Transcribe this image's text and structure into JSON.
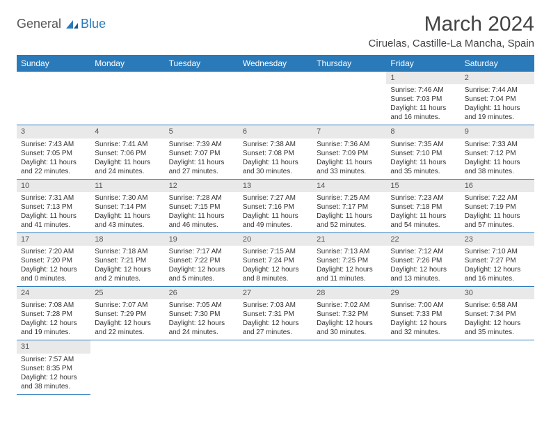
{
  "header": {
    "logo_general": "General",
    "logo_blue": "Blue",
    "month_title": "March 2024",
    "location": "Ciruelas, Castille-La Mancha, Spain"
  },
  "colors": {
    "header_bg": "#2a7aba",
    "header_text": "#ffffff",
    "daynum_bg": "#e9e9e9",
    "border": "#2a7aba",
    "text": "#333333"
  },
  "weekdays": [
    "Sunday",
    "Monday",
    "Tuesday",
    "Wednesday",
    "Thursday",
    "Friday",
    "Saturday"
  ],
  "days": [
    {
      "n": 1,
      "sunrise": "7:46 AM",
      "sunset": "7:03 PM",
      "dl": "11 hours and 16 minutes."
    },
    {
      "n": 2,
      "sunrise": "7:44 AM",
      "sunset": "7:04 PM",
      "dl": "11 hours and 19 minutes."
    },
    {
      "n": 3,
      "sunrise": "7:43 AM",
      "sunset": "7:05 PM",
      "dl": "11 hours and 22 minutes."
    },
    {
      "n": 4,
      "sunrise": "7:41 AM",
      "sunset": "7:06 PM",
      "dl": "11 hours and 24 minutes."
    },
    {
      "n": 5,
      "sunrise": "7:39 AM",
      "sunset": "7:07 PM",
      "dl": "11 hours and 27 minutes."
    },
    {
      "n": 6,
      "sunrise": "7:38 AM",
      "sunset": "7:08 PM",
      "dl": "11 hours and 30 minutes."
    },
    {
      "n": 7,
      "sunrise": "7:36 AM",
      "sunset": "7:09 PM",
      "dl": "11 hours and 33 minutes."
    },
    {
      "n": 8,
      "sunrise": "7:35 AM",
      "sunset": "7:10 PM",
      "dl": "11 hours and 35 minutes."
    },
    {
      "n": 9,
      "sunrise": "7:33 AM",
      "sunset": "7:12 PM",
      "dl": "11 hours and 38 minutes."
    },
    {
      "n": 10,
      "sunrise": "7:31 AM",
      "sunset": "7:13 PM",
      "dl": "11 hours and 41 minutes."
    },
    {
      "n": 11,
      "sunrise": "7:30 AM",
      "sunset": "7:14 PM",
      "dl": "11 hours and 43 minutes."
    },
    {
      "n": 12,
      "sunrise": "7:28 AM",
      "sunset": "7:15 PM",
      "dl": "11 hours and 46 minutes."
    },
    {
      "n": 13,
      "sunrise": "7:27 AM",
      "sunset": "7:16 PM",
      "dl": "11 hours and 49 minutes."
    },
    {
      "n": 14,
      "sunrise": "7:25 AM",
      "sunset": "7:17 PM",
      "dl": "11 hours and 52 minutes."
    },
    {
      "n": 15,
      "sunrise": "7:23 AM",
      "sunset": "7:18 PM",
      "dl": "11 hours and 54 minutes."
    },
    {
      "n": 16,
      "sunrise": "7:22 AM",
      "sunset": "7:19 PM",
      "dl": "11 hours and 57 minutes."
    },
    {
      "n": 17,
      "sunrise": "7:20 AM",
      "sunset": "7:20 PM",
      "dl": "12 hours and 0 minutes."
    },
    {
      "n": 18,
      "sunrise": "7:18 AM",
      "sunset": "7:21 PM",
      "dl": "12 hours and 2 minutes."
    },
    {
      "n": 19,
      "sunrise": "7:17 AM",
      "sunset": "7:22 PM",
      "dl": "12 hours and 5 minutes."
    },
    {
      "n": 20,
      "sunrise": "7:15 AM",
      "sunset": "7:24 PM",
      "dl": "12 hours and 8 minutes."
    },
    {
      "n": 21,
      "sunrise": "7:13 AM",
      "sunset": "7:25 PM",
      "dl": "12 hours and 11 minutes."
    },
    {
      "n": 22,
      "sunrise": "7:12 AM",
      "sunset": "7:26 PM",
      "dl": "12 hours and 13 minutes."
    },
    {
      "n": 23,
      "sunrise": "7:10 AM",
      "sunset": "7:27 PM",
      "dl": "12 hours and 16 minutes."
    },
    {
      "n": 24,
      "sunrise": "7:08 AM",
      "sunset": "7:28 PM",
      "dl": "12 hours and 19 minutes."
    },
    {
      "n": 25,
      "sunrise": "7:07 AM",
      "sunset": "7:29 PM",
      "dl": "12 hours and 22 minutes."
    },
    {
      "n": 26,
      "sunrise": "7:05 AM",
      "sunset": "7:30 PM",
      "dl": "12 hours and 24 minutes."
    },
    {
      "n": 27,
      "sunrise": "7:03 AM",
      "sunset": "7:31 PM",
      "dl": "12 hours and 27 minutes."
    },
    {
      "n": 28,
      "sunrise": "7:02 AM",
      "sunset": "7:32 PM",
      "dl": "12 hours and 30 minutes."
    },
    {
      "n": 29,
      "sunrise": "7:00 AM",
      "sunset": "7:33 PM",
      "dl": "12 hours and 32 minutes."
    },
    {
      "n": 30,
      "sunrise": "6:58 AM",
      "sunset": "7:34 PM",
      "dl": "12 hours and 35 minutes."
    },
    {
      "n": 31,
      "sunrise": "7:57 AM",
      "sunset": "8:35 PM",
      "dl": "12 hours and 38 minutes."
    }
  ],
  "labels": {
    "sunrise": "Sunrise:",
    "sunset": "Sunset:",
    "daylight": "Daylight:"
  },
  "layout": {
    "first_weekday_index": 5,
    "total_cells": 42
  }
}
